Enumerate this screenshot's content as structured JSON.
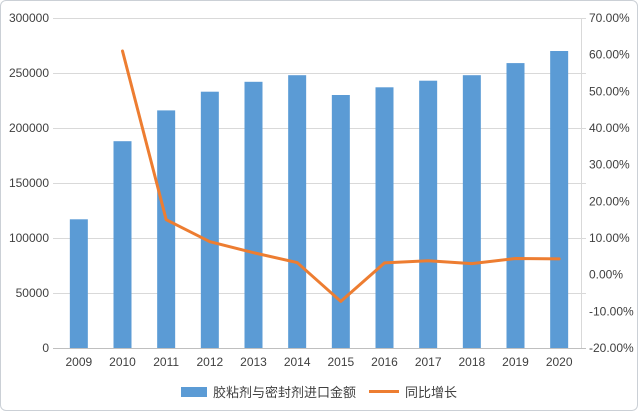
{
  "chart_data": {
    "type": "combo",
    "title": "",
    "categories": [
      "2009",
      "2010",
      "2011",
      "2012",
      "2013",
      "2014",
      "2015",
      "2016",
      "2017",
      "2018",
      "2019",
      "2020"
    ],
    "series": [
      {
        "name": "胶粘剂与密封剂进口金额",
        "type": "bar",
        "axis": "left",
        "color": "#5B9BD5",
        "values": [
          117000,
          188000,
          216000,
          233000,
          242000,
          248000,
          230000,
          237000,
          243000,
          248000,
          259000,
          270000
        ]
      },
      {
        "name": "同比增长",
        "type": "line",
        "axis": "right",
        "unit": "percent",
        "color": "#ED7D31",
        "values": [
          null,
          61,
          15,
          9,
          6,
          3.3,
          -7.3,
          3.2,
          3.8,
          3,
          4.4,
          4.3
        ]
      }
    ],
    "left_axis": {
      "min": 0,
      "max": 300000,
      "tick_values": [
        0,
        50000,
        100000,
        150000,
        200000,
        250000,
        300000
      ],
      "tick_labels": [
        "0",
        "50000",
        "100000",
        "150000",
        "200000",
        "250000",
        "300000"
      ]
    },
    "right_axis": {
      "min": -20,
      "max": 70,
      "tick_values": [
        70,
        60,
        50,
        40,
        30,
        20,
        10,
        0,
        -10,
        -20
      ],
      "tick_labels": [
        "70.00%",
        "60.00%",
        "50.00%",
        "40.00%",
        "30.00%",
        "20.00%",
        "10.00%",
        "0.00%",
        "-10.00%",
        "-20.00%"
      ]
    },
    "grid": true,
    "legend_position": "bottom",
    "colors": {
      "grid": "#D9D9D9",
      "axis_line": "#BFBFBF",
      "text": "#404040",
      "border": "#CBD0D6"
    }
  }
}
